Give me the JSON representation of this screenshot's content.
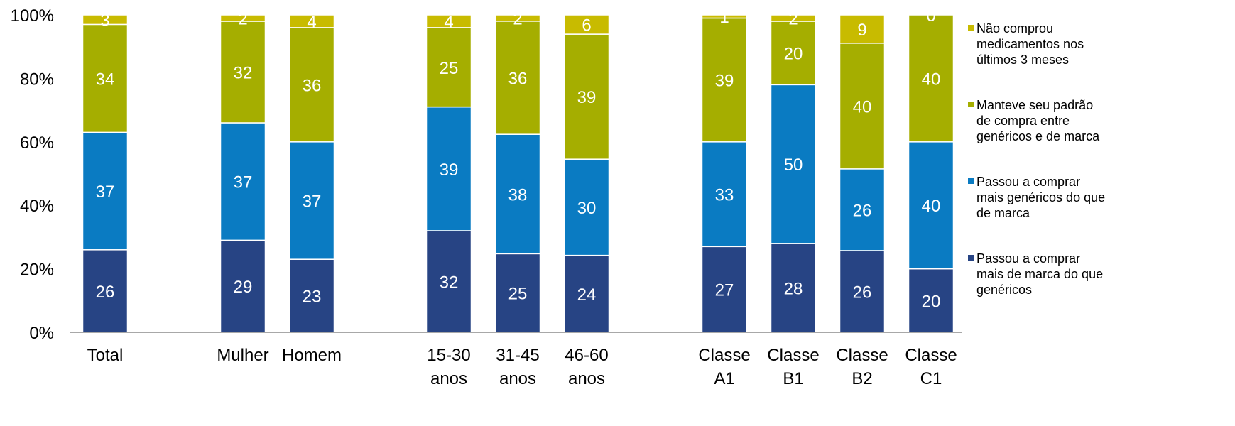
{
  "chart_data": {
    "type": "bar",
    "stacked": true,
    "percent_stacked": true,
    "categories": [
      [
        "Total"
      ],
      [
        "Mulher"
      ],
      [
        "Homem"
      ],
      [
        "15-30",
        "anos"
      ],
      [
        "31-45",
        "anos"
      ],
      [
        "46-60",
        "anos"
      ],
      [
        "Classe",
        "A1"
      ],
      [
        "Classe",
        "B1"
      ],
      [
        "Classe",
        "B2"
      ],
      [
        "Classe",
        "C1"
      ]
    ],
    "series": [
      {
        "name": "Passou a comprar mais de marca do que genéricos",
        "legend_lines": [
          "Passou a comprar",
          "mais de marca do que",
          "genéricos"
        ],
        "color": "#274484",
        "values": [
          26,
          29,
          23,
          32,
          25,
          24,
          27,
          28,
          26,
          20
        ]
      },
      {
        "name": "Passou a comprar mais genéricos do que de marca",
        "legend_lines": [
          "Passou a comprar",
          "mais genéricos do que",
          "de marca"
        ],
        "color": "#0A7BC2",
        "values": [
          37,
          37,
          37,
          39,
          38,
          30,
          33,
          50,
          26,
          40
        ]
      },
      {
        "name": "Manteve seu padrão de compra entre genéricos e de marca",
        "legend_lines": [
          "Manteve seu padrão",
          "de compra entre",
          "genéricos e de marca"
        ],
        "color": "#A5AE00",
        "values": [
          34,
          32,
          36,
          25,
          36,
          39,
          39,
          20,
          40,
          40
        ]
      },
      {
        "name": "Não comprou medicamentos nos últimos 3 meses",
        "legend_lines": [
          "Não comprou",
          "medicamentos nos",
          "últimos 3 meses"
        ],
        "color": "#C8BB00",
        "values": [
          3,
          2,
          4,
          4,
          2,
          6,
          1,
          2,
          9,
          0
        ]
      }
    ],
    "y_ticks": [
      "0%",
      "20%",
      "40%",
      "60%",
      "80%",
      "100%"
    ],
    "ylim": [
      0,
      100
    ],
    "grid": false,
    "legend_position": "right"
  }
}
